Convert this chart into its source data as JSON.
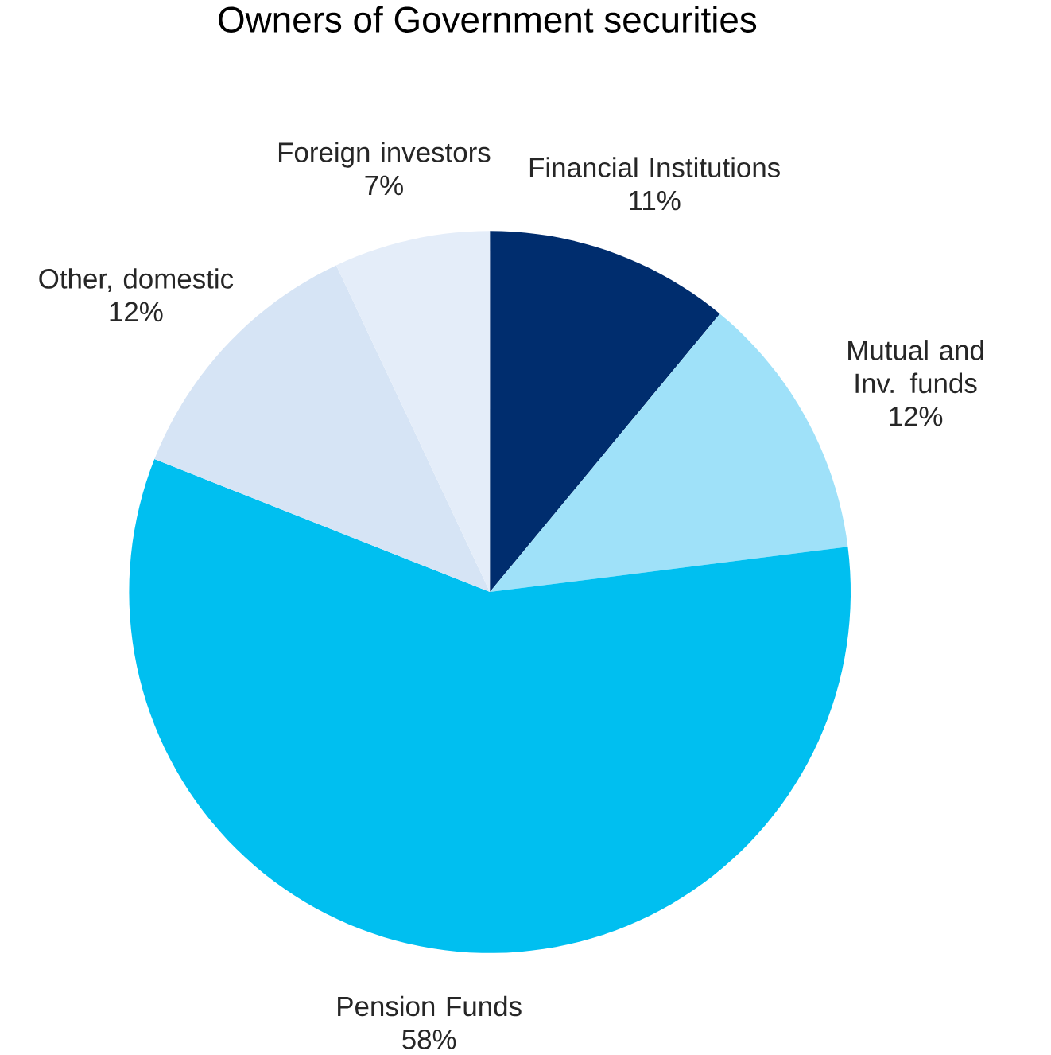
{
  "chart_data": {
    "type": "pie",
    "title": "Owners of Government securities",
    "categories": [
      "Financial Institutions",
      "Mutual and Inv. funds",
      "Pension Funds",
      "Other, domestic",
      "Foreign investors"
    ],
    "values": [
      11,
      12,
      58,
      12,
      7
    ],
    "value_labels": [
      "11%",
      "12%",
      "58%",
      "12%",
      "7%"
    ],
    "colors": [
      "#002d6e",
      "#9fe1f9",
      "#00bff0",
      "#d6e4f5",
      "#e4edf9"
    ]
  }
}
